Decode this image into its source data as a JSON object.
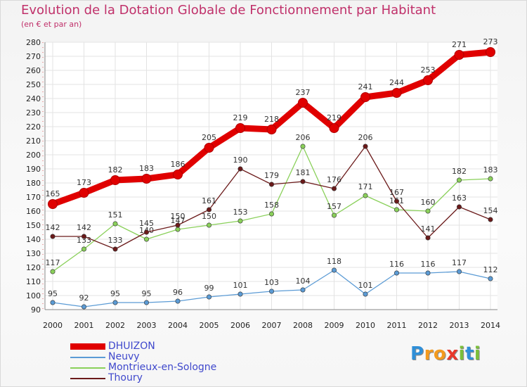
{
  "title": "Evolution de la Dotation Globale de Fonctionnement par Habitant",
  "subtitle": "(en € et par an)",
  "chart_data": {
    "type": "line",
    "title": "Evolution de la Dotation Globale de Fonctionnement par Habitant",
    "subtitle": "(en € et par an)",
    "xlabel": "",
    "ylabel": "",
    "x": [
      "2000",
      "2001",
      "2002",
      "2003",
      "2004",
      "2005",
      "2006",
      "2007",
      "2008",
      "2009",
      "2010",
      "2011",
      "2012",
      "2013",
      "2014"
    ],
    "ylim": [
      90,
      280
    ],
    "yticks": [
      90,
      100,
      110,
      120,
      130,
      140,
      150,
      160,
      170,
      180,
      190,
      200,
      210,
      220,
      230,
      240,
      250,
      260,
      270,
      280
    ],
    "grid": true,
    "legend_position": "bottom-left",
    "series": [
      {
        "name": "DHUIZON",
        "color": "#e00000",
        "values": [
          165,
          173,
          182,
          183,
          186,
          205,
          219,
          218,
          237,
          219,
          241,
          244,
          253,
          271,
          273
        ]
      },
      {
        "name": "Neuvy",
        "color": "#5b9bd5",
        "values": [
          95,
          92,
          95,
          95,
          96,
          99,
          101,
          103,
          104,
          118,
          101,
          116,
          116,
          117,
          112
        ]
      },
      {
        "name": "Montrieux-en-Sologne",
        "color": "#8ad05a",
        "values": [
          117,
          133,
          151,
          140,
          147,
          150,
          153,
          158,
          206,
          157,
          171,
          161,
          160,
          182,
          183
        ]
      },
      {
        "name": "Thoury",
        "color": "#6b1a1a",
        "values": [
          142,
          142,
          133,
          145,
          150,
          161,
          190,
          179,
          181,
          176,
          206,
          167,
          141,
          163,
          154
        ]
      }
    ]
  },
  "logo": {
    "text": "Proxiti",
    "letters": [
      "P",
      "r",
      "o",
      "x",
      "i",
      "t",
      "i"
    ],
    "colors": [
      "#2f8fd8",
      "#f39a1e",
      "#f39a1e",
      "#e8382b",
      "#7bbf3a",
      "#2f8fd8",
      "#7bbf3a"
    ]
  }
}
